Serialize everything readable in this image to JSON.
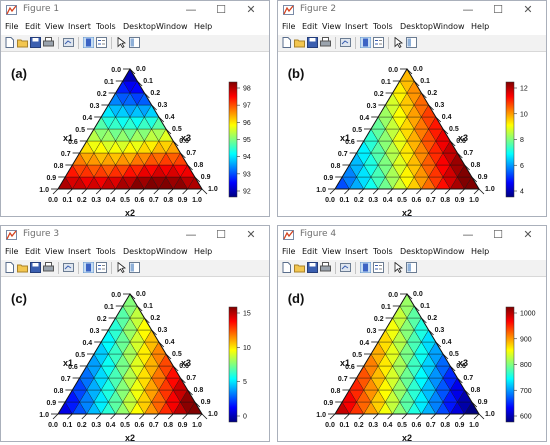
{
  "figures": [
    {
      "title": "Figure 1",
      "panel_label": "(a)",
      "labels": {
        "x1": "x1",
        "x2": "x2",
        "x3": "x3"
      },
      "colorbar_ticks": [
        "98",
        "97",
        "96",
        "95",
        "94",
        "93",
        "92"
      ],
      "colormap_direction": "top-blue-to-bottom-red"
    },
    {
      "title": "Figure 2",
      "panel_label": "(b)",
      "labels": {
        "x1": "x1",
        "x2": "x2",
        "x3": "x3"
      },
      "colorbar_ticks": [
        "12",
        "10",
        "8",
        "6",
        "4"
      ],
      "colormap_direction": "bottom-left-blue-to-right-red"
    },
    {
      "title": "Figure 3",
      "panel_label": "(c)",
      "labels": {
        "x1": "x1",
        "x2": "x2",
        "x3": "x3"
      },
      "colorbar_ticks": [
        "15",
        "10",
        "5",
        "0"
      ],
      "colormap_direction": "left-blue-to-right-red"
    },
    {
      "title": "Figure 4",
      "panel_label": "(d)",
      "labels": {
        "x1": "x1",
        "x2": "x2",
        "x3": "x3"
      },
      "colorbar_ticks": [
        "1000",
        "900",
        "800",
        "700",
        "600"
      ],
      "colormap_direction": "left-red-to-right-blue"
    }
  ],
  "menu": [
    "File",
    "Edit",
    "View",
    "Insert",
    "Tools",
    "Desktop",
    "Window",
    "Help"
  ],
  "axis_ticks": {
    "left": [
      "0.0",
      "0.1",
      "0.2",
      "0.3",
      "0.4",
      "0.5",
      "0.6",
      "0.7",
      "0.8",
      "0.9",
      "1.0"
    ],
    "right": [
      "1.0",
      "0.9",
      "0.8",
      "0.7",
      "0.6",
      "0.5",
      "0.4",
      "0.3",
      "0.2",
      "0.1",
      "0.0"
    ],
    "bottom": [
      "0.0",
      "0.1",
      "0.2",
      "0.3",
      "0.4",
      "0.5",
      "0.6",
      "0.7",
      "0.8",
      "0.9",
      "1.0"
    ]
  },
  "window_controls": {
    "minimize": "—",
    "maximize": "☐",
    "close": "✕"
  },
  "icons": [
    "new-file-icon",
    "open-folder-icon",
    "save-icon",
    "print-icon",
    "link-plot-icon",
    "colorbar-icon",
    "legend-icon",
    "pointer-icon",
    "property-editor-icon"
  ]
}
